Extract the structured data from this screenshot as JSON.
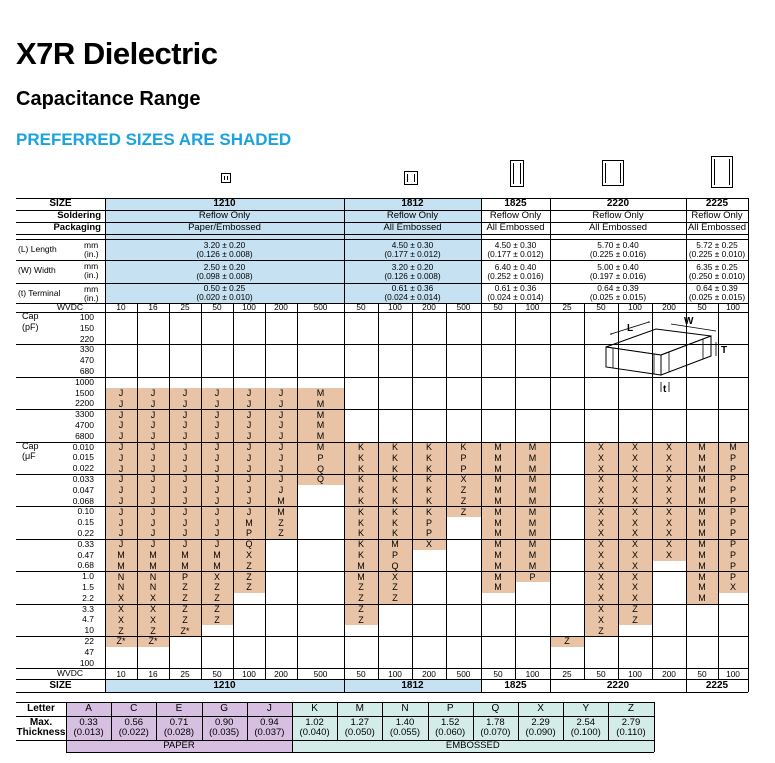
{
  "header": {
    "title": "X7R Dielectric",
    "subtitle": "Capacitance Range",
    "preferred_note": "PREFERRED SIZES ARE SHADED"
  },
  "colors": {
    "accent": "#1aa3dc",
    "size_fill": "#c6e2f2",
    "preferred_fill": "#e8c3a5",
    "paper": "#d6bfe0",
    "embossed": "#d4ece8"
  },
  "row_labels": {
    "size": "SIZE",
    "soldering": "Soldering",
    "packaging": "Packaging",
    "length": "(L)  Length",
    "width": "(W)  Width",
    "terminal": "(t)    Terminal",
    "mm": "mm",
    "in": "(in.)",
    "wvdc": "WVDC",
    "cap_pf": [
      "Cap",
      "(pF)"
    ],
    "cap_uf": [
      "Cap",
      "(μF"
    ]
  },
  "sizes": [
    {
      "name": "1210",
      "soldering": "Reflow Only",
      "packaging": "Paper/Embossed",
      "length": [
        "3.20 ± 0.20",
        "(0.126 ± 0.008)"
      ],
      "width": [
        "2.50 ± 0.20",
        "(0.098 ± 0.008)"
      ],
      "terminal": [
        "0.50 ± 0.25",
        "(0.020 ± 0.010)"
      ],
      "wvdc": [
        "10",
        "16",
        "25",
        "50",
        "100",
        "200",
        "500"
      ]
    },
    {
      "name": "1812",
      "soldering": "Reflow Only",
      "packaging": "All Embossed",
      "length": [
        "4.50 ± 0.30",
        "(0.177 ± 0.012)"
      ],
      "width": [
        "3.20 ± 0.20",
        "(0.126 ± 0.008)"
      ],
      "terminal": [
        "0.61 ± 0.36",
        "(0.024 ± 0.014)"
      ],
      "wvdc": [
        "50",
        "100",
        "200",
        "500"
      ]
    },
    {
      "name": "1825",
      "soldering": "Reflow Only",
      "packaging": "All Embossed",
      "length": [
        "4.50 ± 0.30",
        "(0.177 ± 0.012)"
      ],
      "width": [
        "6.40 ± 0.40",
        "(0.252 ± 0.016)"
      ],
      "terminal": [
        "0.61 ± 0.36",
        "(0.024 ± 0.014)"
      ],
      "wvdc": [
        "50",
        "100"
      ]
    },
    {
      "name": "2220",
      "soldering": "Reflow Only",
      "packaging": "All Embossed",
      "length": [
        "5.70 ± 0.40",
        "(0.225 ± 0.016)"
      ],
      "width": [
        "5.00 ± 0.40",
        "(0.197 ± 0.016)"
      ],
      "terminal": [
        "0.64 ± 0.39",
        "(0.025 ± 0.015)"
      ],
      "wvdc": [
        "25",
        "50",
        "100",
        "200"
      ]
    },
    {
      "name": "2225",
      "soldering": "Reflow Only",
      "packaging": "All Embossed",
      "length": [
        "5.72 ± 0.25",
        "(0.225 ± 0.010)"
      ],
      "width": [
        "6.35 ± 0.25",
        "(0.250 ± 0.010)"
      ],
      "terminal": [
        "0.64 ± 0.39",
        "(0.025 ± 0.015)"
      ],
      "wvdc": [
        "50",
        "100"
      ]
    }
  ],
  "cap_values": [
    "100",
    "150",
    "220",
    "330",
    "470",
    "680",
    "1000",
    "1500",
    "2200",
    "3300",
    "4700",
    "6800",
    "0.010",
    "0.015",
    "0.022",
    "0.033",
    "0.047",
    "0.068",
    "0.10",
    "0.15",
    "0.22",
    "0.33",
    "0.47",
    "0.68",
    "1.0",
    "1.5",
    "2.2",
    "3.3",
    "4.7",
    "10",
    "22",
    "47",
    "100"
  ],
  "grid": [
    [
      "",
      "",
      "",
      "",
      "",
      "",
      "",
      "",
      "",
      "",
      "",
      "",
      "",
      "",
      "",
      "",
      "",
      "",
      ""
    ],
    [
      "",
      "",
      "",
      "",
      "",
      "",
      "",
      "",
      "",
      "",
      "",
      "",
      "",
      "",
      "",
      "",
      "",
      "",
      ""
    ],
    [
      "",
      "",
      "",
      "",
      "",
      "",
      "",
      "",
      "",
      "",
      "",
      "",
      "",
      "",
      "",
      "",
      "",
      "",
      ""
    ],
    [
      "",
      "",
      "",
      "",
      "",
      "",
      "",
      "",
      "",
      "",
      "",
      "",
      "",
      "",
      "",
      "",
      "",
      "",
      ""
    ],
    [
      "",
      "",
      "",
      "",
      "",
      "",
      "",
      "",
      "",
      "",
      "",
      "",
      "",
      "",
      "",
      "",
      "",
      "",
      ""
    ],
    [
      "",
      "",
      "",
      "",
      "",
      "",
      "",
      "",
      "",
      "",
      "",
      "",
      "",
      "",
      "",
      "",
      "",
      "",
      ""
    ],
    [
      "",
      "",
      "",
      "",
      "",
      "",
      "",
      "",
      "",
      "",
      "",
      "",
      "",
      "",
      "",
      "",
      "",
      "",
      ""
    ],
    [
      "J",
      "J",
      "J",
      "J",
      "J",
      "J",
      "M",
      "",
      "",
      "",
      "",
      "",
      "",
      "",
      "",
      "",
      "",
      "",
      ""
    ],
    [
      "J",
      "J",
      "J",
      "J",
      "J",
      "J",
      "M",
      "",
      "",
      "",
      "",
      "",
      "",
      "",
      "",
      "",
      "",
      "",
      ""
    ],
    [
      "J",
      "J",
      "J",
      "J",
      "J",
      "J",
      "M",
      "",
      "",
      "",
      "",
      "",
      "",
      "",
      "",
      "",
      "",
      "",
      ""
    ],
    [
      "J",
      "J",
      "J",
      "J",
      "J",
      "J",
      "M",
      "",
      "",
      "",
      "",
      "",
      "",
      "",
      "",
      "",
      "",
      "",
      ""
    ],
    [
      "J",
      "J",
      "J",
      "J",
      "J",
      "J",
      "M",
      "",
      "",
      "",
      "",
      "",
      "",
      "",
      "",
      "",
      "",
      "",
      ""
    ],
    [
      "J",
      "J",
      "J",
      "J",
      "J",
      "J",
      "M",
      "K",
      "K",
      "K",
      "K",
      "M",
      "M",
      "",
      "X",
      "X",
      "X",
      "M",
      "M"
    ],
    [
      "J",
      "J",
      "J",
      "J",
      "J",
      "J",
      "P",
      "K",
      "K",
      "K",
      "P",
      "M",
      "M",
      "",
      "X",
      "X",
      "X",
      "M",
      "P"
    ],
    [
      "J",
      "J",
      "J",
      "J",
      "J",
      "J",
      "Q",
      "K",
      "K",
      "K",
      "P",
      "M",
      "M",
      "",
      "X",
      "X",
      "X",
      "M",
      "P"
    ],
    [
      "J",
      "J",
      "J",
      "J",
      "J",
      "J",
      "Q",
      "K",
      "K",
      "K",
      "X",
      "M",
      "M",
      "",
      "X",
      "X",
      "X",
      "M",
      "P"
    ],
    [
      "J",
      "J",
      "J",
      "J",
      "J",
      "J",
      "",
      "K",
      "K",
      "K",
      "Z",
      "M",
      "M",
      "",
      "X",
      "X",
      "X",
      "M",
      "P"
    ],
    [
      "J",
      "J",
      "J",
      "J",
      "J",
      "M",
      "",
      "K",
      "K",
      "K",
      "Z",
      "M",
      "M",
      "",
      "X",
      "X",
      "X",
      "M",
      "P"
    ],
    [
      "J",
      "J",
      "J",
      "J",
      "J",
      "M",
      "",
      "K",
      "K",
      "K",
      "Z",
      "M",
      "M",
      "",
      "X",
      "X",
      "X",
      "M",
      "P"
    ],
    [
      "J",
      "J",
      "J",
      "J",
      "M",
      "Z",
      "",
      "K",
      "K",
      "P",
      "",
      "M",
      "M",
      "",
      "X",
      "X",
      "X",
      "M",
      "P"
    ],
    [
      "J",
      "J",
      "J",
      "J",
      "P",
      "Z",
      "",
      "K",
      "K",
      "P",
      "",
      "M",
      "M",
      "",
      "X",
      "X",
      "X",
      "M",
      "P"
    ],
    [
      "J",
      "J",
      "J",
      "J",
      "Q",
      "",
      "",
      "K",
      "M",
      "X",
      "",
      "M",
      "M",
      "",
      "X",
      "X",
      "X",
      "M",
      "P"
    ],
    [
      "M",
      "M",
      "M",
      "M",
      "X",
      "",
      "",
      "K",
      "P",
      "",
      "",
      "M",
      "M",
      "",
      "X",
      "X",
      "X",
      "M",
      "P"
    ],
    [
      "M",
      "M",
      "M",
      "M",
      "Z",
      "",
      "",
      "M",
      "Q",
      "",
      "",
      "M",
      "M",
      "",
      "X",
      "X",
      "",
      "M",
      "P"
    ],
    [
      "N",
      "N",
      "P",
      "X",
      "Z",
      "",
      "",
      "M",
      "X",
      "",
      "",
      "M",
      "P",
      "",
      "X",
      "X",
      "",
      "M",
      "P"
    ],
    [
      "N",
      "N",
      "Z",
      "Z",
      "Z",
      "",
      "",
      "Z",
      "Z",
      "",
      "",
      "M",
      "",
      "",
      "X",
      "X",
      "",
      "M",
      "X"
    ],
    [
      "X",
      "X",
      "Z",
      "Z",
      "",
      "",
      "",
      "Z",
      "Z",
      "",
      "",
      "",
      "",
      "",
      "X",
      "X",
      "",
      "M",
      ""
    ],
    [
      "X",
      "X",
      "Z",
      "Z",
      "",
      "",
      "",
      "Z",
      "",
      "",
      "",
      "",
      "",
      "",
      "X",
      "Z",
      "",
      "",
      ""
    ],
    [
      "X",
      "X",
      "Z",
      "Z",
      "",
      "",
      "",
      "Z",
      "",
      "",
      "",
      "",
      "",
      "",
      "X",
      "Z",
      "",
      "",
      ""
    ],
    [
      "Z",
      "Z",
      "Z*",
      "",
      "",
      "",
      "",
      "",
      "",
      "",
      "",
      "",
      "",
      "",
      "Z",
      "",
      "",
      "",
      ""
    ],
    [
      "Z*",
      "Z*",
      "",
      "",
      "",
      "",
      "",
      "",
      "",
      "",
      "",
      "",
      "",
      "Z",
      "",
      "",
      "",
      "",
      ""
    ],
    [
      "",
      "",
      "",
      "",
      "",
      "",
      "",
      "",
      "",
      "",
      "",
      "",
      "",
      "",
      "",
      "",
      "",
      "",
      ""
    ],
    [
      "",
      "",
      "",
      "",
      "",
      "",
      "",
      "",
      "",
      "",
      "",
      "",
      "",
      "",
      "",
      "",
      "",
      "",
      ""
    ]
  ],
  "diagram_labels": {
    "L": "L",
    "W": "W",
    "T": "T",
    "t": "t"
  },
  "thickness": {
    "letter_label": "Letter",
    "max_label": [
      "Max.",
      "Thickness"
    ],
    "letters": [
      "A",
      "C",
      "E",
      "G",
      "J",
      "K",
      "M",
      "N",
      "P",
      "Q",
      "X",
      "Y",
      "Z"
    ],
    "mm": [
      "0.33",
      "0.56",
      "0.71",
      "0.90",
      "0.94",
      "1.02",
      "1.27",
      "1.40",
      "1.52",
      "1.78",
      "2.29",
      "2.54",
      "2.79"
    ],
    "inch": [
      "(0.013)",
      "(0.022)",
      "(0.028)",
      "(0.035)",
      "(0.037)",
      "(0.040)",
      "(0.050)",
      "(0.055)",
      "(0.060)",
      "(0.070)",
      "(0.090)",
      "(0.100)",
      "(0.110)"
    ],
    "paper_label": "PAPER",
    "embossed_label": "EMBOSSED"
  }
}
